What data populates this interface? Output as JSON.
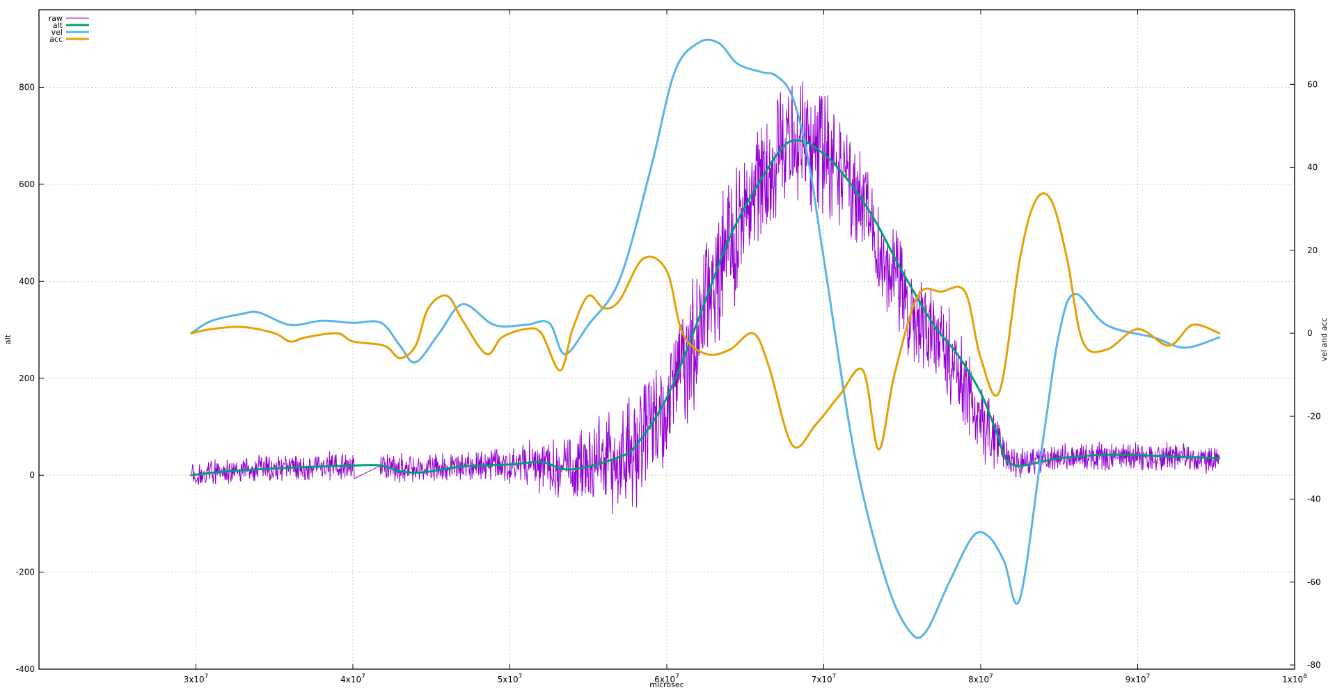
{
  "chart_data": {
    "type": "line",
    "title": "",
    "xlabel": "microsec",
    "ylabel": "alt",
    "y2label": "vel and acc",
    "xlim": [
      20000000,
      100000000
    ],
    "ylim": [
      -400,
      960
    ],
    "y2lim": [
      -81,
      78
    ],
    "grid": true,
    "legend_position": "top-left",
    "x_ticks": [
      {
        "value": 30000000,
        "base": "3x10",
        "exp": "7"
      },
      {
        "value": 40000000,
        "base": "4x10",
        "exp": "7"
      },
      {
        "value": 50000000,
        "base": "5x10",
        "exp": "7"
      },
      {
        "value": 60000000,
        "base": "6x10",
        "exp": "7"
      },
      {
        "value": 70000000,
        "base": "7x10",
        "exp": "7"
      },
      {
        "value": 80000000,
        "base": "8x10",
        "exp": "7"
      },
      {
        "value": 90000000,
        "base": "9x10",
        "exp": "7"
      },
      {
        "value": 100000000,
        "base": "1x10",
        "exp": "8"
      }
    ],
    "y_ticks": [
      "-400",
      "-200",
      "0",
      "200",
      "400",
      "600",
      "800"
    ],
    "y2_ticks": [
      "-80",
      "-60",
      "-40",
      "-20",
      "0",
      "20",
      "40",
      "60"
    ],
    "series": [
      {
        "name": "raw",
        "axis": "y1",
        "color": "#9400d3",
        "style": "noisy",
        "x": [
          29700000,
          32000000,
          35000000,
          38000000,
          39900000,
          41700000,
          44000000,
          47000000,
          50000000,
          52000000,
          54000000,
          56000000,
          58000000,
          60000000,
          62000000,
          64000000,
          66000000,
          68000000,
          70000000,
          72000000,
          74000000,
          76000000,
          78000000,
          80000000,
          82000000,
          85000000,
          88000000,
          91000000,
          95200000
        ],
        "y": [
          0,
          8,
          14,
          18,
          20,
          20,
          12,
          18,
          22,
          24,
          12,
          25,
          45,
          140,
          300,
          480,
          620,
          690,
          670,
          600,
          430,
          320,
          250,
          110,
          25,
          35,
          40,
          38,
          33
        ],
        "noise": [
          40,
          40,
          40,
          40,
          40,
          40,
          40,
          40,
          55,
          80,
          100,
          140,
          175,
          185,
          190,
          200,
          195,
          185,
          170,
          160,
          150,
          145,
          140,
          125,
          45,
          40,
          40,
          40,
          40
        ]
      },
      {
        "name": "alt",
        "axis": "y1",
        "color": "#009e73",
        "x": [
          29700000,
          32000000,
          35000000,
          38000000,
          40000000,
          41800000,
          43000000,
          44500000,
          47000000,
          50000000,
          52000000,
          53500000,
          55000000,
          57000000,
          58000000,
          60000000,
          62000000,
          64000000,
          66000000,
          67500000,
          68500000,
          69500000,
          71000000,
          73000000,
          75000000,
          77000000,
          78500000,
          80000000,
          81000000,
          82000000,
          85000000,
          88000000,
          91000000,
          95200000
        ],
        "y": [
          0,
          8,
          14,
          18,
          20,
          20,
          8,
          6,
          18,
          22,
          27,
          12,
          18,
          38,
          60,
          160,
          320,
          490,
          610,
          680,
          690,
          675,
          630,
          540,
          420,
          310,
          250,
          170,
          90,
          22,
          35,
          42,
          40,
          35
        ]
      },
      {
        "name": "vel",
        "axis": "y2",
        "color": "#56b4e9",
        "x": [
          29700000,
          31000000,
          33000000,
          34000000,
          36000000,
          38000000,
          40000000,
          41800000,
          43000000,
          44000000,
          45500000,
          47000000,
          49000000,
          51000000,
          52500000,
          53500000,
          55000000,
          57000000,
          59000000,
          60500000,
          62000000,
          63300000,
          64500000,
          66000000,
          67000000,
          68000000,
          69000000,
          70000000,
          72000000,
          74000000,
          75500000,
          76500000,
          78000000,
          79500000,
          80500000,
          81500000,
          82500000,
          84000000,
          85000000,
          86000000,
          88000000,
          91000000,
          93000000,
          95200000
        ],
        "y": [
          0,
          3,
          4.7,
          5,
          2,
          3,
          2.5,
          2.5,
          -3,
          -7,
          0,
          7,
          2,
          2,
          2.5,
          -5,
          2,
          13,
          40,
          63,
          70,
          70,
          65,
          63,
          62,
          57,
          42,
          18,
          -30,
          -60,
          -72,
          -72,
          -60,
          -49,
          -49,
          -55,
          -64,
          -25,
          0,
          9.5,
          2,
          -1,
          -3.5,
          -1
        ]
      },
      {
        "name": "acc",
        "axis": "y2",
        "color": "#e69f00",
        "x": [
          29700000,
          31000000,
          33000000,
          35000000,
          36000000,
          37000000,
          39000000,
          40000000,
          42000000,
          43000000,
          44000000,
          44800000,
          46000000,
          47000000,
          48500000,
          49500000,
          51000000,
          52000000,
          53200000,
          54000000,
          55000000,
          56000000,
          57000000,
          58500000,
          60000000,
          61000000,
          62500000,
          64000000,
          65500000,
          66500000,
          68000000,
          69500000,
          71000000,
          72500000,
          73500000,
          74500000,
          76000000,
          77500000,
          79000000,
          80000000,
          81200000,
          82500000,
          83500000,
          84500000,
          85500000,
          86500000,
          88000000,
          90000000,
          92000000,
          93500000,
          95200000
        ],
        "y": [
          0,
          1,
          1.5,
          0,
          -2,
          -1,
          0,
          -2,
          -3,
          -6,
          -3,
          6,
          9,
          3,
          -5,
          -1,
          1,
          0,
          -9,
          1,
          9,
          6,
          8,
          18,
          15,
          0,
          -5,
          -4,
          0,
          -8,
          -27,
          -22,
          -15,
          -9,
          -28,
          -10,
          9,
          10,
          10,
          -6,
          -14,
          18,
          32,
          32,
          18,
          -2,
          -4,
          1,
          -3,
          2,
          0
        ]
      }
    ]
  }
}
